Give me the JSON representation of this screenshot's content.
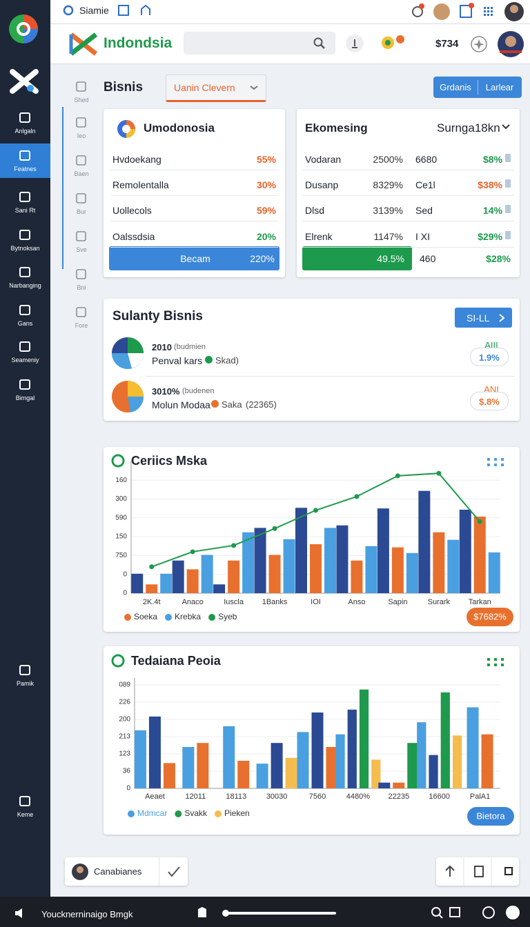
{
  "topbar": {
    "title": "Siamie"
  },
  "header": {
    "brand": "Indondsia",
    "amount": "$734"
  },
  "sidebar": {
    "items": [
      "Anlgaln",
      "Featnes",
      "Sani Rt",
      "Bytnoksan",
      "Narbanging",
      "Gans",
      "Seameniy",
      "Bimgal",
      "Pamik",
      "Keme"
    ]
  },
  "subnav": [
    "Shed",
    "Ieo",
    "Baen",
    "Bur",
    "Sve",
    "Bni",
    "Fore"
  ],
  "page": {
    "title": "Bisnis",
    "dropdown": "Uanin Clevern",
    "buttons": [
      "Grdanis",
      "Larlear"
    ]
  },
  "card1": {
    "title": "Umodonosia",
    "rows": [
      [
        "Hvdoekang",
        "55%"
      ],
      [
        "Remolentalla",
        "30%"
      ],
      [
        "Uollecols",
        "59%"
      ],
      [
        "Oalssdsia",
        "20%"
      ]
    ],
    "footer": [
      "Becam",
      "220%"
    ]
  },
  "card2": {
    "title": "Ekomesing",
    "select": "Surnga18kn",
    "rows": [
      [
        "Vodaran",
        "2500%",
        "6680",
        "$8%"
      ],
      [
        "Dusanp",
        "8329%",
        "Ce1l",
        "$38%"
      ],
      [
        "Dlsd",
        "3139%",
        "Sed",
        "14%"
      ],
      [
        "Elrenk",
        "1147%",
        "I XI",
        "$29%"
      ]
    ],
    "footer": [
      "49.5%",
      "460",
      "$28%"
    ]
  },
  "summary": {
    "title": "Sulanty Bisnis",
    "button": "SI-LL",
    "items": [
      {
        "heading": "2010",
        "note": "(budmien",
        "name": "Penval kars",
        "legend": "Skad)",
        "extra": "",
        "tag": "AIII",
        "badge": "1.9%"
      },
      {
        "heading": "3010%",
        "note": "(budenen",
        "name": "Molun Modaa",
        "legend": "Saka",
        "extra": "(22365)",
        "tag": "ANI",
        "badge": "$.8%"
      }
    ]
  },
  "chart_data": [
    {
      "type": "bar",
      "title": "Ceriics Mska",
      "categories": [
        "2K.4t",
        "Anaco",
        "Iuscla",
        "1Banks",
        "IOI",
        "Anso",
        "Sapin",
        "Surark",
        "Tarkan"
      ],
      "series": [
        {
          "color": "#2c4a94",
          "values": [
            31,
            52,
            14,
            104,
            136,
            108,
            135,
            163,
            133
          ]
        },
        {
          "name": "Soeka",
          "color": "#e8702e",
          "values": [
            14,
            38,
            52,
            61,
            78,
            52,
            73,
            97,
            122
          ]
        },
        {
          "name": "Krebka",
          "color": "#4a9fe0",
          "values": [
            31,
            61,
            97,
            86,
            104,
            75,
            64,
            85,
            65
          ]
        },
        {
          "name": "Syeb",
          "color": "#1e9a4c",
          "kind": "line",
          "values": [
            42,
            66,
            76,
            103,
            132,
            154,
            187,
            191,
            114
          ]
        }
      ],
      "ylim": [
        0,
        200
      ],
      "yticks": [
        0,
        {
          "value": 30,
          "label": "0"
        },
        {
          "value": 60,
          "label": "750"
        },
        {
          "value": 90,
          "label": "150"
        },
        {
          "value": 120,
          "label": "590"
        },
        {
          "value": 150,
          "label": "300"
        },
        {
          "value": 180,
          "label": "160"
        }
      ],
      "grid": true,
      "annotation": "$7682%",
      "annotation_color": "#e8702e"
    },
    {
      "type": "bar",
      "title": "Tedaiana Peoia",
      "categories": [
        "Aeaet",
        "12011",
        "18113",
        "30030",
        "7560",
        "4480%",
        "22235",
        "16600",
        "PalA1"
      ],
      "series": [
        {
          "name": "Mdmcar",
          "color": "#4a9fe0",
          "values": [
            101,
            72,
            108,
            43,
            98,
            94,
            null,
            115,
            141
          ]
        },
        {
          "color": "#2c4a94",
          "values": [
            125,
            null,
            null,
            79,
            132,
            137,
            10,
            58,
            null
          ]
        },
        {
          "color": "#e8702e",
          "values": [
            44,
            79,
            48,
            null,
            72,
            null,
            10,
            null,
            94
          ]
        },
        {
          "name": "Svakk",
          "color": "#1e9a4c",
          "values": [
            null,
            null,
            null,
            null,
            null,
            172,
            79,
            167,
            null
          ]
        },
        {
          "name": "Pieken",
          "color": "#f5bd4f",
          "values": [
            null,
            null,
            null,
            53,
            null,
            50,
            null,
            92,
            null
          ]
        }
      ],
      "ylim": [
        0,
        180
      ],
      "yticks": [
        0,
        {
          "value": 30,
          "label": "36"
        },
        {
          "value": 60,
          "label": "123"
        },
        {
          "value": 90,
          "label": "213"
        },
        {
          "value": 120,
          "label": "200"
        },
        {
          "value": 150,
          "label": "226"
        },
        {
          "value": 180,
          "label": "089"
        }
      ],
      "grid": true,
      "annotation": "Bietora",
      "annotation_color": "#3b86d8"
    }
  ],
  "footer": {
    "chip": "Canabianes"
  },
  "taskbar": {
    "text": "Youcknerninaigo Bmgk"
  }
}
